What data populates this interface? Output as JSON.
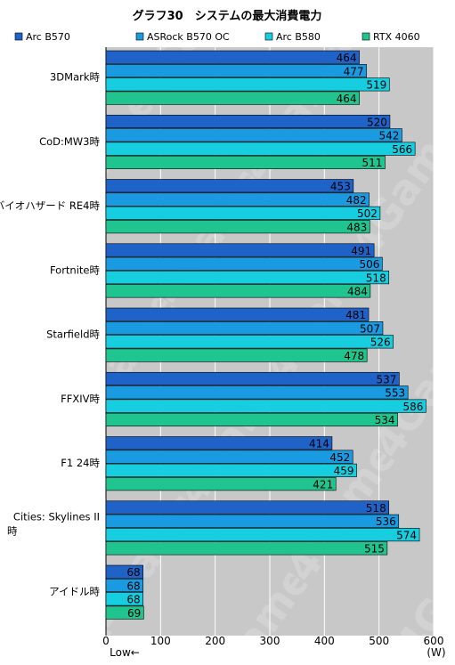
{
  "chart_data": {
    "type": "bar",
    "orientation": "horizontal",
    "title": "グラフ30　システムの最大消費電力",
    "categories": [
      "3DMark時",
      "CoD:MW3時",
      "バイオハザード RE4時",
      "Fortnite時",
      "Starfield時",
      "FFXIV時",
      "F1 24時",
      "Cities: Skylines II時",
      "アイドル時"
    ],
    "series": [
      {
        "name": "Arc B570",
        "color": "#1f62c8",
        "values": [
          464,
          520,
          453,
          491,
          481,
          537,
          414,
          518,
          68
        ]
      },
      {
        "name": "ASRock B570 OC",
        "color": "#1a9ae0",
        "values": [
          477,
          542,
          482,
          506,
          507,
          553,
          452,
          536,
          68
        ]
      },
      {
        "name": "Arc B580",
        "color": "#17cde0",
        "values": [
          519,
          566,
          502,
          518,
          526,
          586,
          459,
          574,
          68
        ]
      },
      {
        "name": "RTX 4060",
        "color": "#20c48e",
        "values": [
          464,
          511,
          483,
          484,
          478,
          534,
          421,
          515,
          69
        ]
      }
    ],
    "xlim": [
      0,
      600
    ],
    "xticks": [
      0,
      100,
      200,
      300,
      400,
      500,
      600
    ],
    "unit_label": "(W)",
    "low_label": "Low←",
    "legend_position": "top",
    "grid": true,
    "plot_background": "#c8c8c8",
    "watermark": "4Gamer.net"
  }
}
